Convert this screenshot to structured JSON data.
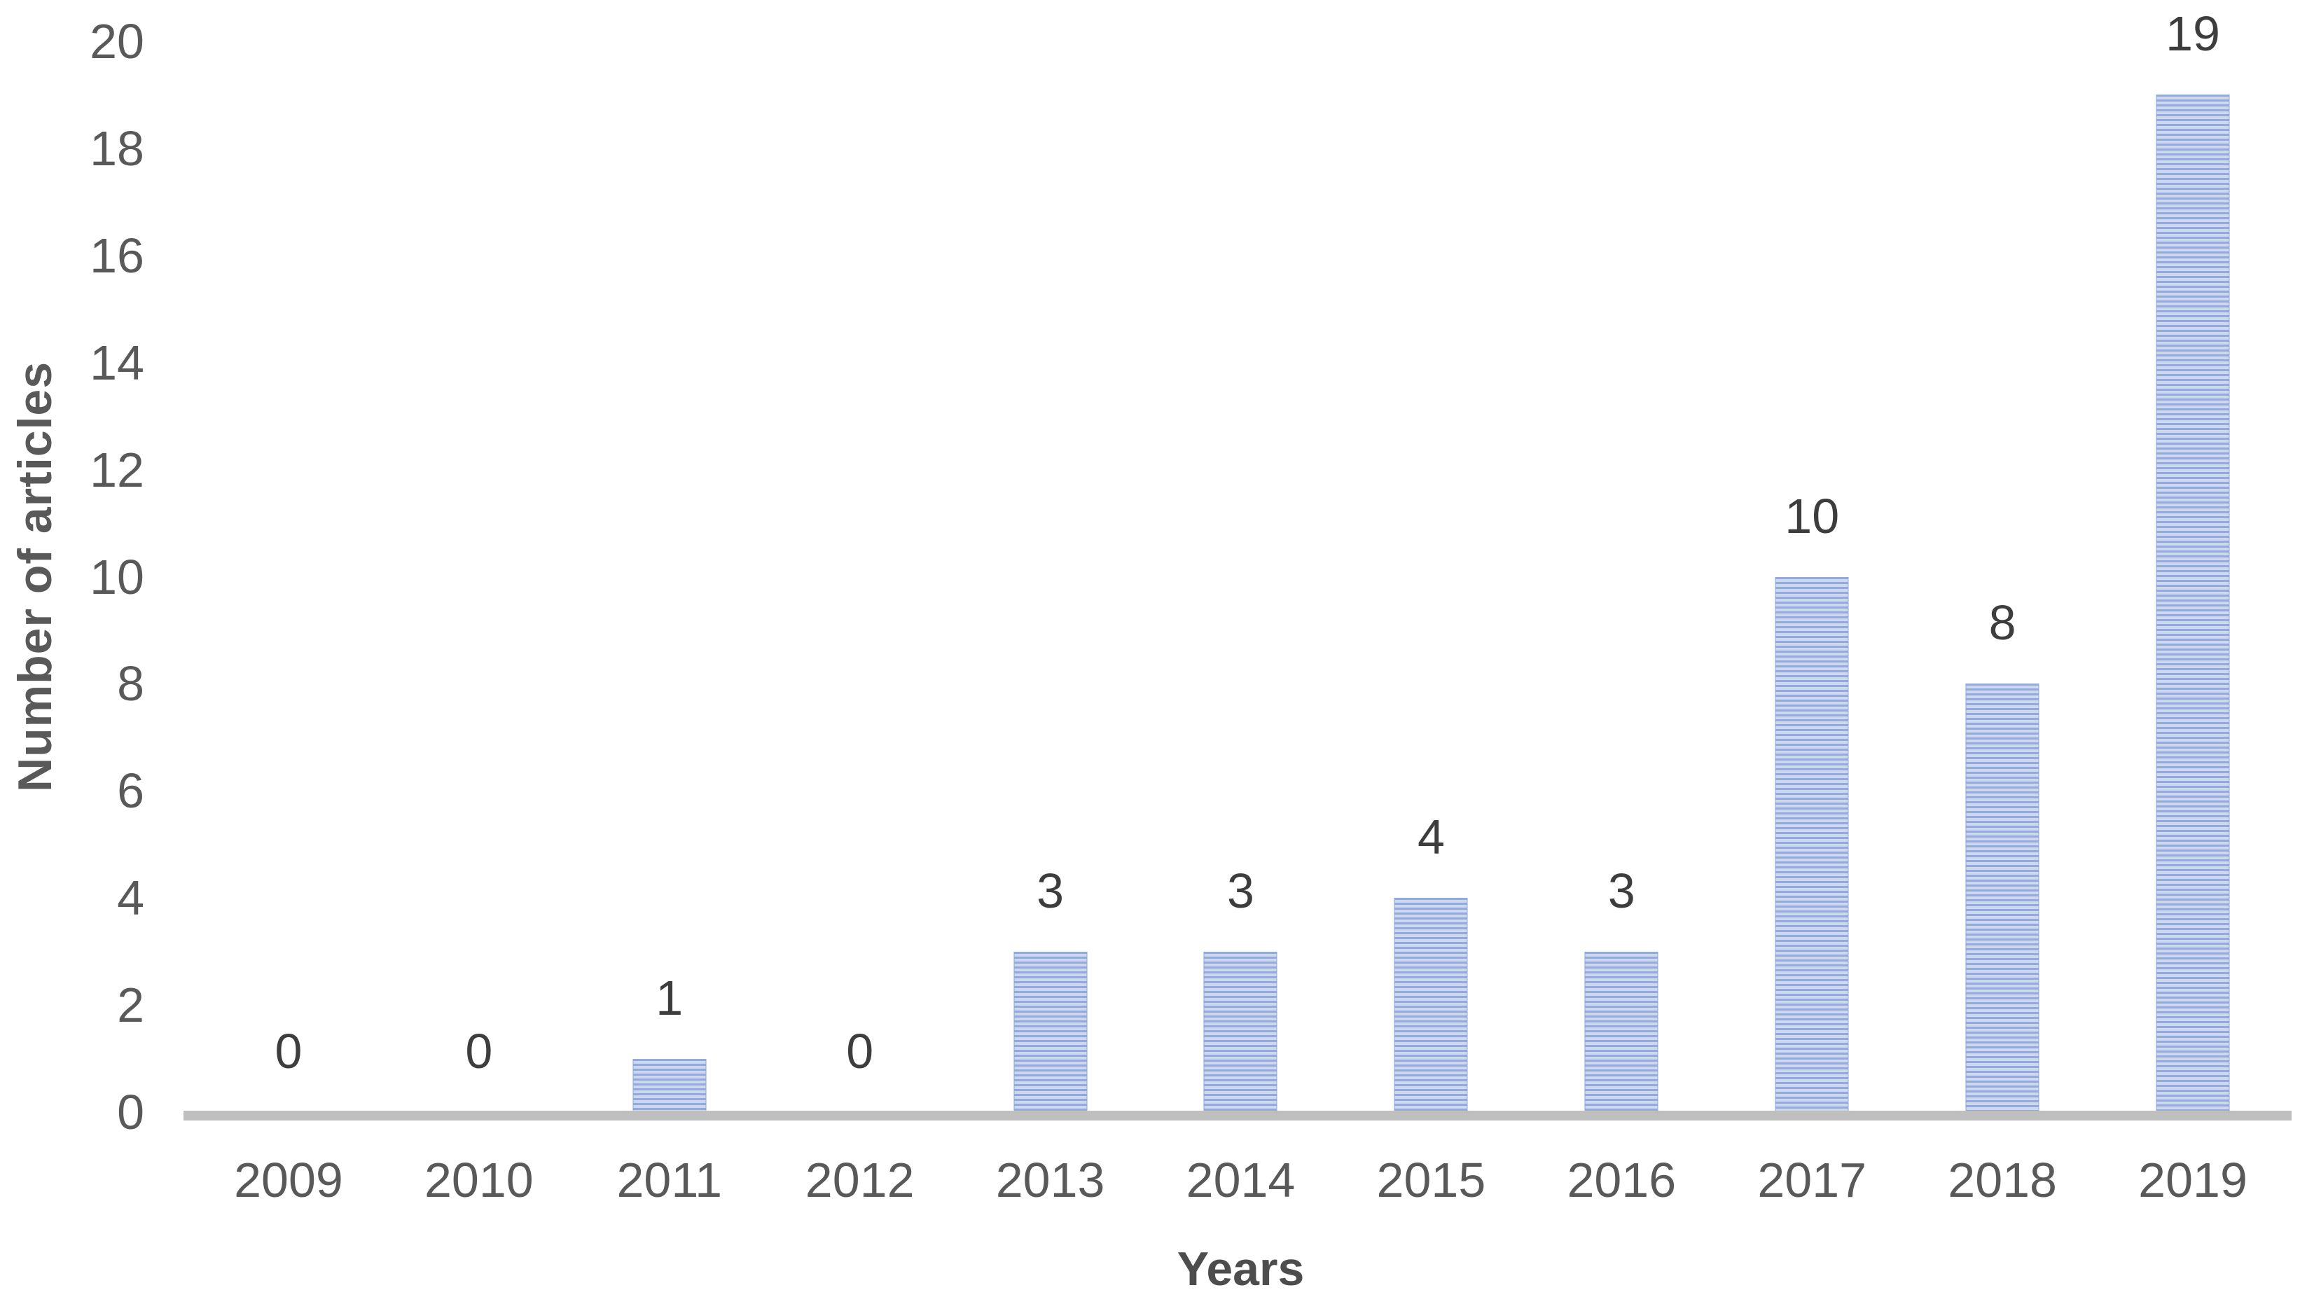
{
  "chart_data": {
    "type": "bar",
    "title": "",
    "xlabel": "Years",
    "ylabel": "Number of articles",
    "categories": [
      "2009",
      "2010",
      "2011",
      "2012",
      "2013",
      "2014",
      "2015",
      "2016",
      "2017",
      "2018",
      "2019"
    ],
    "values": [
      0,
      0,
      1,
      0,
      3,
      3,
      4,
      3,
      10,
      8,
      19
    ],
    "data_labels": [
      "0",
      "0",
      "1",
      "0",
      "3",
      "3",
      "4",
      "3",
      "10",
      "8",
      "19"
    ],
    "ylim": [
      0,
      20
    ],
    "ytick_step": 2,
    "yticks": [
      0,
      2,
      4,
      6,
      8,
      10,
      12,
      14,
      16,
      18,
      20
    ],
    "grid": false,
    "legend": false,
    "colors": {
      "bar_stripe_dark": "#94aadc",
      "bar_stripe_light": "#ccd7f0",
      "axis_line": "#bfbfbf",
      "tick_text": "#595959",
      "data_label_text": "#3d3d3d",
      "axis_title_text": "#4d4d4d"
    }
  }
}
